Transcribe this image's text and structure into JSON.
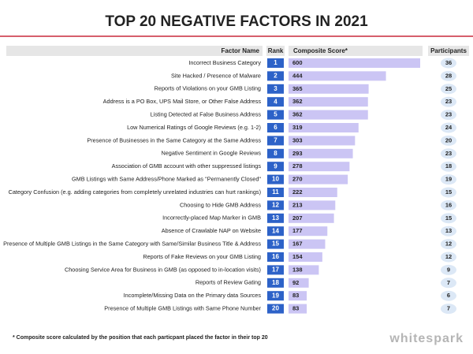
{
  "chart_data": {
    "type": "bar",
    "title": "TOP 20 NEGATIVE FACTORS IN 2021",
    "headers": [
      "Factor Name",
      "Rank",
      "Composite Score*",
      "Participants"
    ],
    "categories": [
      "Incorrect Business Category",
      "Site Hacked / Presence of Malware",
      "Reports of Violations on your GMB Listing",
      "Address is a PO Box, UPS Mail Store, or Other False Address",
      "Listing Detected at False Business Address",
      "Low Numerical Ratings of Google Reviews (e.g. 1-2)",
      "Presence of Businesses in the Same Category at the Same Address",
      "Negative Sentiment in Google Reviews",
      "Association of GMB account with other suppressed listings",
      "GMB Listings with Same Address/Phone Marked as \"Permanently Closed\"",
      "Category Confusion (e.g. adding categories from completely unrelated industries can hurt rankings)",
      "Choosing to Hide GMB Address",
      "Incorrectly-placed Map Marker in GMB",
      "Absence of Crawlable NAP on Website",
      "Presence of Multiple GMB Listings in the Same Category with Same/Similar Business Title & Address",
      "Reports of Fake Reviews on your GMB Listing",
      "Choosing Service Area for Business in GMB (as opposed to in-location visits)",
      "Reports of Review Gating",
      "Incomplete/Missing Data on the Primary data Sources",
      "Presence of Multiple GMB Listings with Same Phone Number"
    ],
    "ranks": [
      1,
      2,
      3,
      4,
      5,
      6,
      7,
      8,
      9,
      10,
      11,
      12,
      13,
      14,
      15,
      16,
      17,
      18,
      19,
      20
    ],
    "values": [
      600,
      444,
      365,
      362,
      362,
      319,
      303,
      293,
      278,
      270,
      222,
      213,
      207,
      177,
      167,
      154,
      138,
      92,
      83,
      83
    ],
    "participants": [
      36,
      28,
      25,
      23,
      23,
      24,
      20,
      23,
      18,
      19,
      15,
      16,
      15,
      13,
      12,
      12,
      9,
      7,
      6,
      7
    ],
    "color": "#cbc5f4",
    "rank_color": "#2d62c8",
    "participants_color": "#dce8f6",
    "footnote": "* Composite score calculated by the position that each particpant placed the factor in their top 20",
    "brand": "whitespark"
  }
}
